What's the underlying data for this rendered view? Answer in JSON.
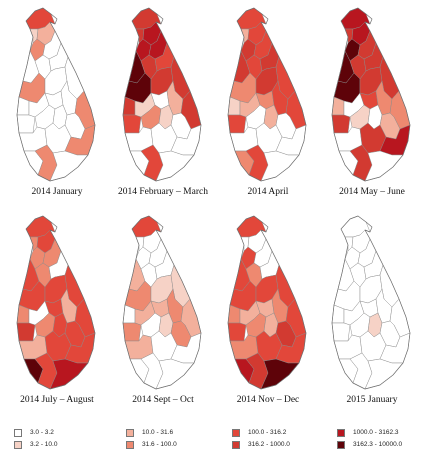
{
  "figure": {
    "panels": [
      {
        "label": "2014 January",
        "values": [
          5,
          2,
          3,
          4,
          0,
          0,
          0,
          0,
          4,
          0,
          0,
          0,
          0,
          0,
          0,
          4,
          0,
          0,
          0,
          0,
          0,
          0,
          4,
          0,
          4,
          0
        ]
      },
      {
        "label": "2014 February – March",
        "values": [
          6,
          6,
          7,
          7,
          7,
          8,
          6,
          5,
          8,
          6,
          6,
          6,
          2,
          1,
          3,
          6,
          5,
          4,
          2,
          0,
          0,
          0,
          0,
          0,
          5,
          0
        ]
      },
      {
        "label": "2014 April",
        "values": [
          5,
          3,
          5,
          6,
          5,
          6,
          5,
          6,
          4,
          6,
          5,
          2,
          3,
          4,
          5,
          5,
          5,
          1,
          3,
          0,
          0,
          0,
          0,
          4,
          5,
          0
        ]
      },
      {
        "label": "2014 May – June",
        "values": [
          7,
          6,
          7,
          8,
          6,
          8,
          6,
          6,
          8,
          6,
          6,
          3,
          1,
          5,
          4,
          4,
          6,
          2,
          0,
          3,
          0,
          6,
          7,
          0,
          6,
          0
        ]
      },
      {
        "label": "2014 July – August",
        "values": [
          5,
          4,
          5,
          4,
          4,
          5,
          4,
          0,
          5,
          5,
          5,
          4,
          0,
          5,
          3,
          5,
          6,
          4,
          5,
          5,
          3,
          5,
          5,
          8,
          5,
          7
        ]
      },
      {
        "label": "2014 Sept – Oct",
        "values": [
          5,
          0,
          0,
          1,
          0,
          3,
          0,
          0,
          4,
          2,
          2,
          1,
          3,
          3,
          4,
          3,
          4,
          0,
          2,
          4,
          3,
          0,
          0,
          0,
          0,
          0
        ]
      },
      {
        "label": "2014 Nov – Dec",
        "values": [
          5,
          0,
          1,
          5,
          0,
          5,
          4,
          0,
          5,
          5,
          5,
          4,
          3,
          3,
          4,
          5,
          5,
          4,
          3,
          6,
          4,
          5,
          5,
          7,
          6,
          8
        ]
      },
      {
        "label": "2015 January",
        "values": [
          0,
          0,
          0,
          0,
          0,
          0,
          0,
          0,
          0,
          1,
          1,
          1,
          0,
          1,
          1,
          0,
          0,
          1,
          2,
          0,
          0,
          0,
          0,
          0,
          0,
          0
        ]
      }
    ],
    "legend": [
      {
        "label": "3.0 - 3.2",
        "color": "#ffffff"
      },
      {
        "label": "3.2 - 10.0",
        "color": "#f6d2c6"
      },
      {
        "label": "10.0 - 31.6",
        "color": "#f3b09c"
      },
      {
        "label": "31.6 - 100.0",
        "color": "#ee8970"
      },
      {
        "label": "100.0 - 316.2",
        "color": "#e2473a"
      },
      {
        "label": "316.2 - 1000.0",
        "color": "#d23a31"
      },
      {
        "label": "1000.0 - 3162.3",
        "color": "#b8161f"
      },
      {
        "label": "3162.3 - 10000.0",
        "color": "#5e0309"
      }
    ]
  }
}
